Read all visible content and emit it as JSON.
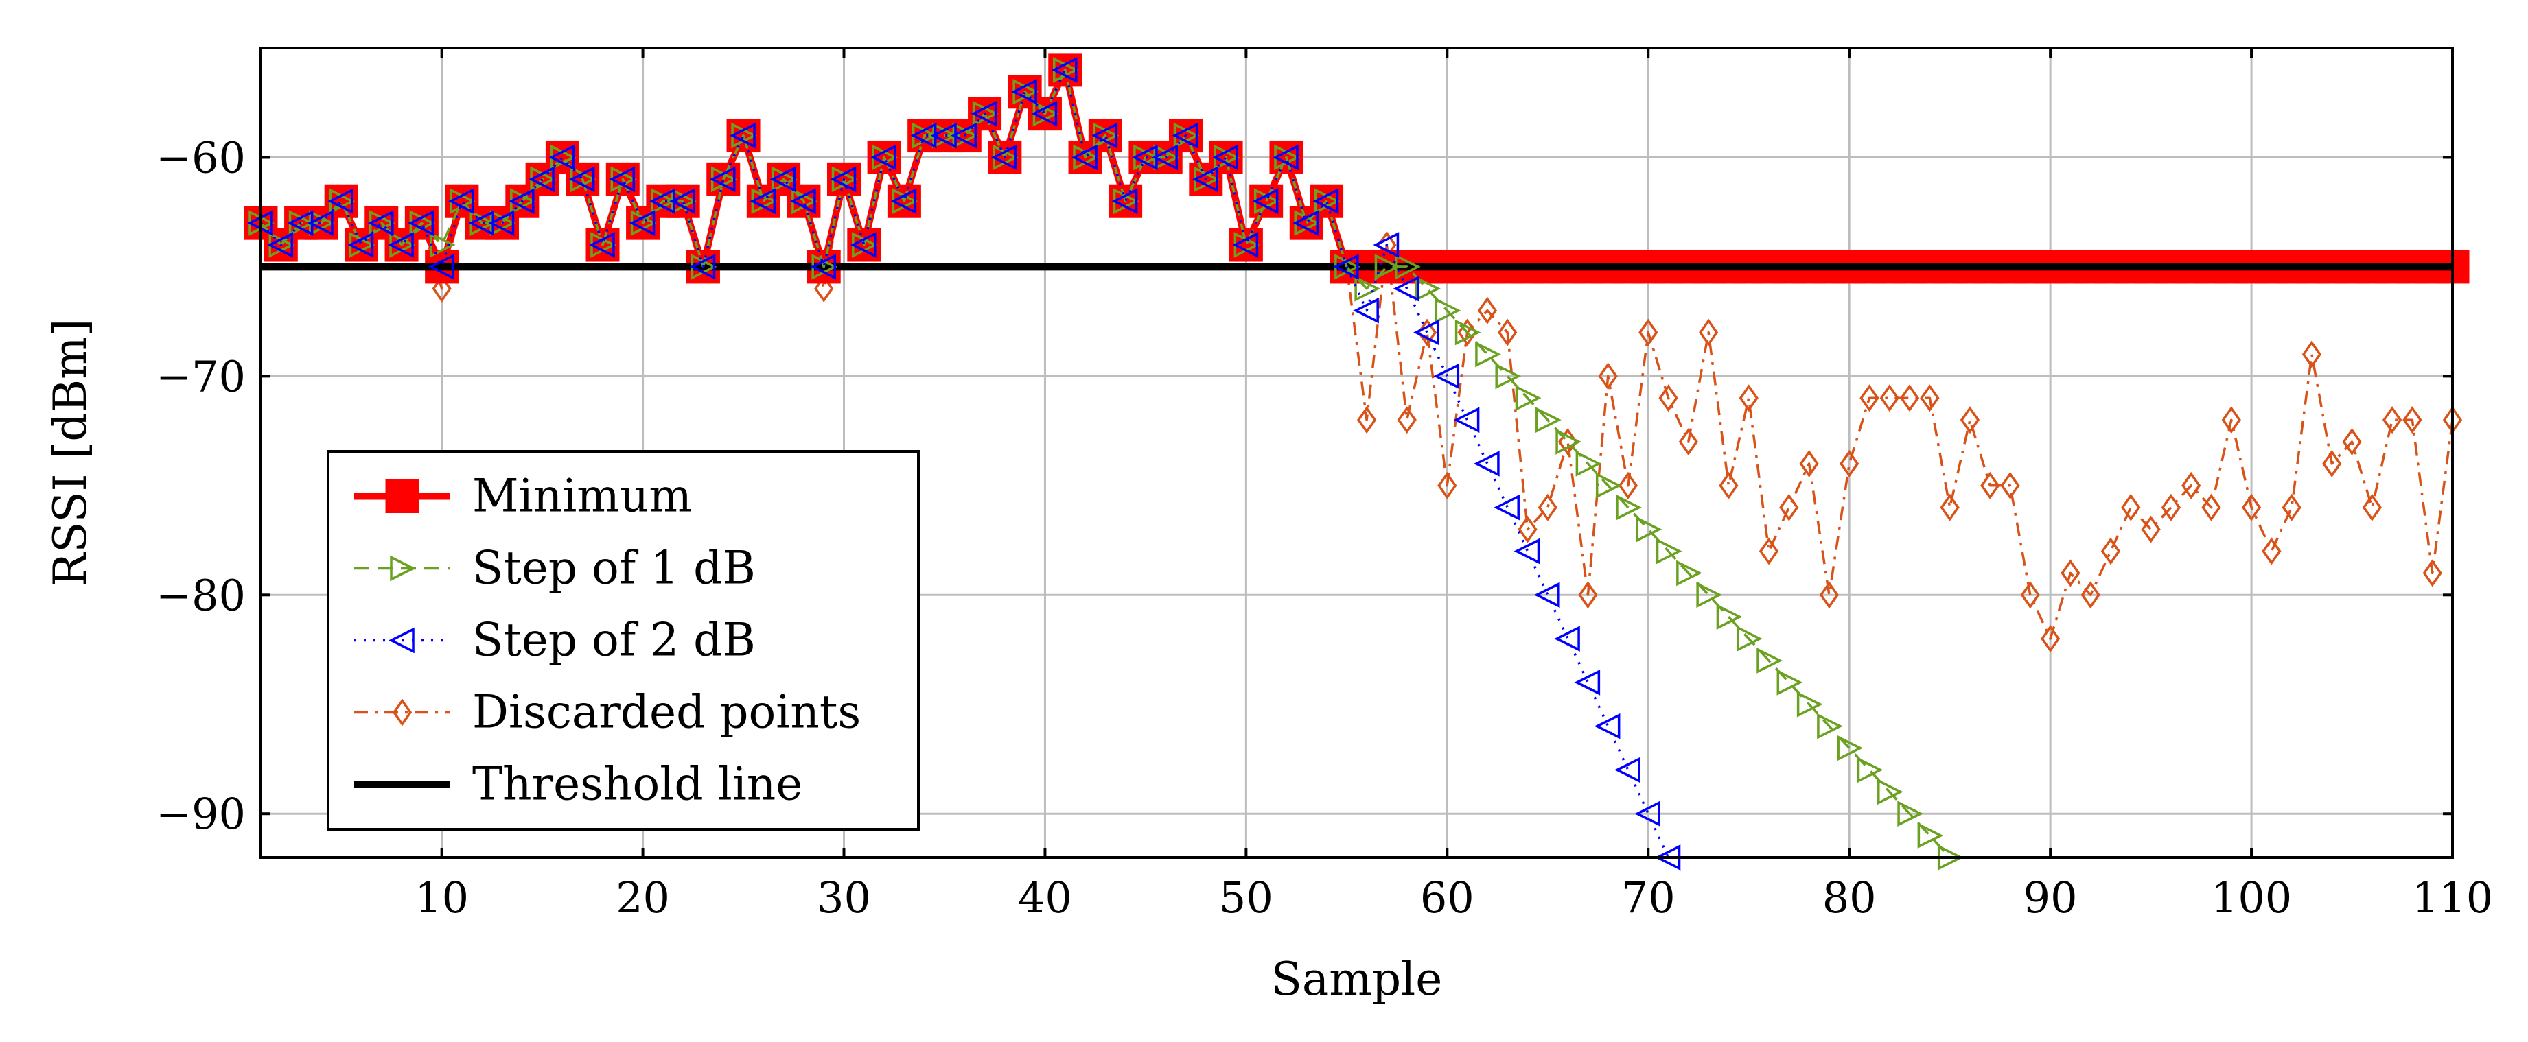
{
  "chart_data": {
    "type": "line",
    "title": "",
    "xlabel": "Sample",
    "ylabel": "RSSI [dBm]",
    "xlim": [
      1,
      110
    ],
    "ylim": [
      -92,
      -55
    ],
    "xticks": [
      10,
      20,
      30,
      40,
      50,
      60,
      70,
      80,
      90,
      100,
      110
    ],
    "yticks": [
      -60,
      -70,
      -80,
      -90
    ],
    "xtick_labels": [
      "10",
      "20",
      "30",
      "40",
      "50",
      "60",
      "70",
      "80",
      "90",
      "100",
      "110"
    ],
    "ytick_labels": [
      "−60",
      "−70",
      "−80",
      "−90"
    ],
    "grid": true,
    "legend_position": "lower-left",
    "series": [
      {
        "name": "Minimum",
        "color": "#ff0000",
        "style": "solid",
        "marker": "square",
        "x": [
          1,
          2,
          3,
          4,
          5,
          6,
          7,
          8,
          9,
          10,
          11,
          12,
          13,
          14,
          15,
          16,
          17,
          18,
          19,
          20,
          21,
          22,
          23,
          24,
          25,
          26,
          27,
          28,
          29,
          30,
          31,
          32,
          33,
          34,
          35,
          36,
          37,
          38,
          39,
          40,
          41,
          42,
          43,
          44,
          45,
          46,
          47,
          48,
          49,
          50,
          51,
          52,
          53,
          54,
          55,
          56,
          57,
          58,
          59,
          60,
          61,
          62,
          63,
          64,
          65,
          66,
          67,
          68,
          69,
          70,
          71,
          72,
          73,
          74,
          75,
          76,
          77,
          78,
          79,
          80,
          81,
          82,
          83,
          84,
          85,
          86,
          87,
          88,
          89,
          90,
          91,
          92,
          93,
          94,
          95,
          96,
          97,
          98,
          99,
          100,
          101,
          102,
          103,
          104,
          105,
          106,
          107,
          108,
          109,
          110
        ],
        "y": [
          -63,
          -64,
          -63,
          -63,
          -62,
          -64,
          -63,
          -64,
          -63,
          -65,
          -62,
          -63,
          -63,
          -62,
          -61,
          -60,
          -61,
          -64,
          -61,
          -63,
          -62,
          -62,
          -65,
          -61,
          -59,
          -62,
          -61,
          -62,
          -65,
          -61,
          -64,
          -60,
          -62,
          -59,
          -59,
          -59,
          -58,
          -60,
          -57,
          -58,
          -56,
          -60,
          -59,
          -62,
          -60,
          -60,
          -59,
          -61,
          -60,
          -64,
          -62,
          -60,
          -63,
          -62,
          -65,
          -65,
          -65,
          -65,
          -65,
          -65,
          -65,
          -65,
          -65,
          -65,
          -65,
          -65,
          -65,
          -65,
          -65,
          -65,
          -65,
          -65,
          -65,
          -65,
          -65,
          -65,
          -65,
          -65,
          -65,
          -65,
          -65,
          -65,
          -65,
          -65,
          -65,
          -65,
          -65,
          -65,
          -65,
          -65,
          -65,
          -65,
          -65,
          -65,
          -65,
          -65,
          -65,
          -65,
          -65,
          -65,
          -65,
          -65,
          -65,
          -65,
          -65,
          -65,
          -65,
          -65,
          -65,
          -65
        ]
      },
      {
        "name": "Step of 1 dB",
        "color": "#6aa121",
        "style": "dashed",
        "marker": "triangle-right",
        "x": [
          1,
          2,
          3,
          4,
          5,
          6,
          7,
          8,
          9,
          10,
          11,
          12,
          13,
          14,
          15,
          16,
          17,
          18,
          19,
          20,
          21,
          22,
          23,
          24,
          25,
          26,
          27,
          28,
          29,
          30,
          31,
          32,
          33,
          34,
          35,
          36,
          37,
          38,
          39,
          40,
          41,
          42,
          43,
          44,
          45,
          46,
          47,
          48,
          49,
          50,
          51,
          52,
          53,
          54,
          55,
          56,
          57,
          58,
          59,
          60,
          61,
          62,
          63,
          64,
          65,
          66,
          67,
          68,
          69,
          70,
          71,
          72,
          73,
          74,
          75,
          76,
          77,
          78,
          79,
          80,
          81,
          82,
          83,
          84,
          85
        ],
        "y": [
          -63,
          -64,
          -63,
          -63,
          -62,
          -64,
          -63,
          -64,
          -63,
          -64,
          -62,
          -63,
          -63,
          -62,
          -61,
          -60,
          -61,
          -64,
          -61,
          -63,
          -62,
          -62,
          -65,
          -61,
          -59,
          -62,
          -61,
          -62,
          -65,
          -61,
          -64,
          -60,
          -62,
          -59,
          -59,
          -59,
          -58,
          -60,
          -57,
          -58,
          -56,
          -60,
          -59,
          -62,
          -60,
          -60,
          -59,
          -61,
          -60,
          -64,
          -62,
          -60,
          -63,
          -62,
          -65,
          -66,
          -65,
          -65,
          -66,
          -67,
          -68,
          -69,
          -70,
          -71,
          -72,
          -73,
          -74,
          -75,
          -76,
          -77,
          -78,
          -79,
          -80,
          -81,
          -82,
          -83,
          -84,
          -85,
          -86,
          -87,
          -88,
          -89,
          -90,
          -91,
          -92
        ]
      },
      {
        "name": "Step of 2 dB",
        "color": "#0000ff",
        "style": "dotted",
        "marker": "triangle-left",
        "x": [
          1,
          2,
          3,
          4,
          5,
          6,
          7,
          8,
          9,
          10,
          11,
          12,
          13,
          14,
          15,
          16,
          17,
          18,
          19,
          20,
          21,
          22,
          23,
          24,
          25,
          26,
          27,
          28,
          29,
          30,
          31,
          32,
          33,
          34,
          35,
          36,
          37,
          38,
          39,
          40,
          41,
          42,
          43,
          44,
          45,
          46,
          47,
          48,
          49,
          50,
          51,
          52,
          53,
          54,
          55,
          56,
          57,
          58,
          59,
          60,
          61,
          62,
          63,
          64,
          65,
          66,
          67,
          68,
          69,
          70,
          71
        ],
        "y": [
          -63,
          -64,
          -63,
          -63,
          -62,
          -64,
          -63,
          -64,
          -63,
          -65,
          -62,
          -63,
          -63,
          -62,
          -61,
          -60,
          -61,
          -64,
          -61,
          -63,
          -62,
          -62,
          -65,
          -61,
          -59,
          -62,
          -61,
          -62,
          -65,
          -61,
          -64,
          -60,
          -62,
          -59,
          -59,
          -59,
          -58,
          -60,
          -57,
          -58,
          -56,
          -60,
          -59,
          -62,
          -60,
          -60,
          -59,
          -61,
          -60,
          -64,
          -62,
          -60,
          -63,
          -62,
          -65,
          -67,
          -64,
          -66,
          -68,
          -70,
          -72,
          -74,
          -76,
          -78,
          -80,
          -82,
          -84,
          -86,
          -88,
          -90,
          -92
        ]
      },
      {
        "name": "Discarded points",
        "color": "#d95319",
        "style": "dashdot",
        "marker": "diamond",
        "x": [
          1,
          2,
          3,
          4,
          5,
          6,
          7,
          8,
          9,
          10,
          11,
          12,
          13,
          14,
          15,
          16,
          17,
          18,
          19,
          20,
          21,
          22,
          23,
          24,
          25,
          26,
          27,
          28,
          29,
          30,
          31,
          32,
          33,
          34,
          35,
          36,
          37,
          38,
          39,
          40,
          41,
          42,
          43,
          44,
          45,
          46,
          47,
          48,
          49,
          50,
          51,
          52,
          53,
          54,
          55,
          56,
          57,
          58,
          59,
          60,
          61,
          62,
          63,
          64,
          65,
          66,
          67,
          68,
          69,
          70,
          71,
          72,
          73,
          74,
          75,
          76,
          77,
          78,
          79,
          80,
          81,
          82,
          83,
          84,
          85,
          86,
          87,
          88,
          89,
          90,
          91,
          92,
          93,
          94,
          95,
          96,
          97,
          98,
          99,
          100,
          101,
          102,
          103,
          104,
          105,
          106,
          107,
          108,
          109,
          110
        ],
        "y": [
          -63,
          -64,
          -63,
          -63,
          -62,
          -64,
          -63,
          -64,
          -63,
          -66,
          -62,
          -63,
          -63,
          -62,
          -61,
          -60,
          -61,
          -64,
          -61,
          -63,
          -62,
          -62,
          -65,
          -61,
          -59,
          -62,
          -61,
          -62,
          -66,
          -61,
          -64,
          -60,
          -62,
          -59,
          -59,
          -59,
          -58,
          -60,
          -57,
          -58,
          -56,
          -60,
          -59,
          -62,
          -60,
          -60,
          -59,
          -61,
          -60,
          -64,
          -62,
          -60,
          -63,
          -62,
          -65,
          -72,
          -64,
          -72,
          -68,
          -75,
          -68,
          -67,
          -68,
          -77,
          -76,
          -73,
          -80,
          -70,
          -75,
          -68,
          -71,
          -73,
          -68,
          -75,
          -71,
          -78,
          -76,
          -74,
          -80,
          -74,
          -71,
          -71,
          -71,
          -71,
          -76,
          -72,
          -75,
          -75,
          -80,
          -82,
          -79,
          -80,
          -78,
          -76,
          -77,
          -76,
          -75,
          -76,
          -72,
          -76,
          -78,
          -76,
          -69,
          -74,
          -73,
          -76,
          -72,
          -72,
          -79,
          -72
        ]
      },
      {
        "name": "Threshold line",
        "color": "#000000",
        "style": "solid",
        "marker": "none",
        "x": [
          1,
          110
        ],
        "y": [
          -65,
          -65
        ]
      }
    ]
  }
}
